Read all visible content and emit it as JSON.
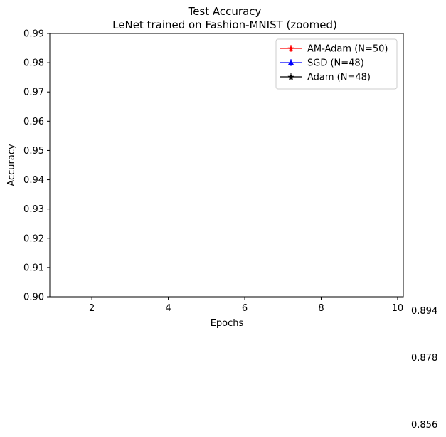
{
  "chart_data": {
    "type": "line",
    "title": "Test Accuracy",
    "subtitle": "LeNet trained on Fashion-MNIST (zoomed)",
    "xlabel": "Epochs",
    "ylabel": "Accuracy",
    "xlim": [
      0.9,
      10.15
    ],
    "ylim": [
      0.9,
      0.99
    ],
    "xticks": [
      2,
      4,
      6,
      8,
      10
    ],
    "yticks": [
      0.9,
      0.91,
      0.92,
      0.93,
      0.94,
      0.95,
      0.96,
      0.97,
      0.98,
      0.99
    ],
    "grid": false,
    "legend_position": "top-right",
    "series": [
      {
        "name": "AM-Adam (N=50)",
        "color": "#ff0000",
        "marker": "star",
        "x": [],
        "y": []
      },
      {
        "name": "SGD (N=48)",
        "color": "#0000ff",
        "marker": "triangle",
        "x": [],
        "y": []
      },
      {
        "name": "Adam (N=48)",
        "color": "#000000",
        "marker": "star",
        "x": [],
        "y": []
      }
    ],
    "annotations": [
      "0.894",
      "0.878",
      "0.856"
    ]
  }
}
